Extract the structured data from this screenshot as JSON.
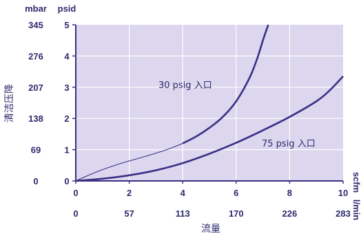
{
  "chart_data": {
    "type": "line",
    "title": "",
    "xlabel": "流量",
    "ylabel": "清洁压降",
    "x_unit_primary": "scfm",
    "x_unit_secondary": "l/min",
    "y_unit_primary": "psid",
    "y_unit_secondary": "mbar",
    "xlim": [
      0,
      10
    ],
    "ylim": [
      0,
      5
    ],
    "x_ticks": [
      "0",
      "2",
      "4",
      "6",
      "8",
      "10"
    ],
    "x_ticks_secondary": [
      "0",
      "57",
      "113",
      "170",
      "226",
      "283"
    ],
    "y_ticks": [
      "0",
      "1",
      "2",
      "3",
      "4",
      "5"
    ],
    "y_ticks_secondary": [
      "0",
      "69",
      "138",
      "207",
      "276",
      "345"
    ],
    "grid": true,
    "series": [
      {
        "name": "30 psig 入口",
        "x": [
          0,
          0.5,
          1,
          1.5,
          2,
          2.5,
          3,
          3.5,
          4,
          4.5,
          5,
          5.5,
          6,
          6.5,
          6.8,
          7.0,
          7.2
        ],
        "y": [
          0,
          0.19,
          0.36,
          0.51,
          0.64,
          0.76,
          0.89,
          1.03,
          1.2,
          1.42,
          1.7,
          2.05,
          2.55,
          3.3,
          3.95,
          4.5,
          5.0
        ]
      },
      {
        "name": "75 psig 入口",
        "x": [
          0,
          1,
          2,
          3,
          4,
          5,
          6,
          7,
          8,
          9,
          9.5,
          10
        ],
        "y": [
          0,
          0.07,
          0.18,
          0.34,
          0.57,
          0.87,
          1.22,
          1.62,
          2.05,
          2.55,
          2.9,
          3.35
        ]
      }
    ],
    "annotations": [
      {
        "text": "30 psig 入口"
      },
      {
        "text": "75 psig 入口"
      }
    ]
  },
  "colors": {
    "plot_bg": "#dcd6ee",
    "line": "#3a2f85",
    "text": "#2e2a6e",
    "grid": "#ffffff"
  }
}
